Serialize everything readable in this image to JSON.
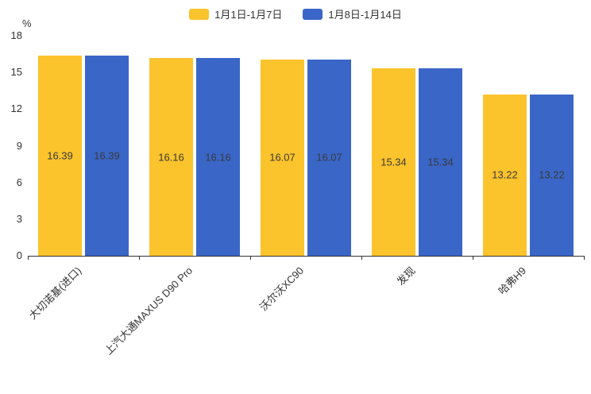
{
  "chart_data": {
    "type": "bar",
    "categories": [
      "大切诺基(进口)",
      "上汽大通MAXUS D90 Pro",
      "沃尔沃XC90",
      "发现",
      "哈弗H9"
    ],
    "series": [
      {
        "name": "1月1日-1月7日",
        "color": "#FBC32C",
        "values": [
          16.39,
          16.16,
          16.07,
          15.34,
          13.22
        ]
      },
      {
        "name": "1月8日-1月14日",
        "color": "#3A66C8",
        "values": [
          16.39,
          16.16,
          16.07,
          15.34,
          13.22
        ]
      }
    ],
    "title": "",
    "xlabel": "",
    "ylabel": "%",
    "ylim": [
      0,
      18
    ],
    "yticks": [
      0,
      3,
      6,
      9,
      12,
      15,
      18
    ],
    "grid": false,
    "legend_position": "top",
    "value_labels": true
  }
}
